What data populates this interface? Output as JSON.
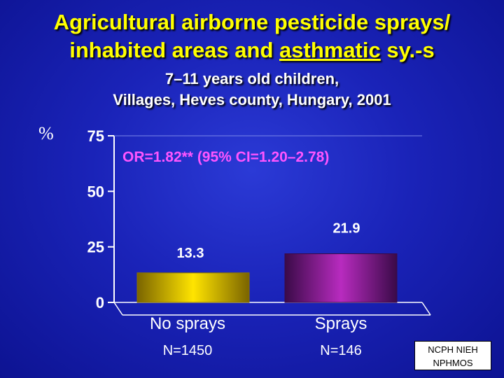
{
  "title": {
    "line1": "Agricultural airborne pesticide sprays/",
    "line2_pre": "inhabited areas and ",
    "line2_underlined": "asthmatic",
    "line2_post": " sy.-s"
  },
  "subtitle": {
    "line1": "7–11 years old children,",
    "line2": "Villages, Heves county, Hungary, 2001"
  },
  "unit_label": "%",
  "chart_data": {
    "type": "bar",
    "categories": [
      "No sprays",
      "Sprays"
    ],
    "values": [
      13.3,
      21.9
    ],
    "value_labels": [
      "13.3",
      "21.9"
    ],
    "sample_sizes": [
      "N=1450",
      "N=146"
    ],
    "yticks": [
      0,
      25,
      50,
      75
    ],
    "ylim": [
      0,
      75
    ],
    "annotation": "OR=1.82**  (95% CI=1.20–2.78)",
    "colors": {
      "bar1": "#8a7400",
      "bar1_highlight": "#ffe400",
      "bar2": "#3a0a48",
      "bar2_highlight": "#b82bbf",
      "annotation": "#ff55ff",
      "axis": "#ffffff"
    },
    "grid": false
  },
  "footer": {
    "line1": "NCPH NIEH",
    "line2": "NPHMOS"
  }
}
